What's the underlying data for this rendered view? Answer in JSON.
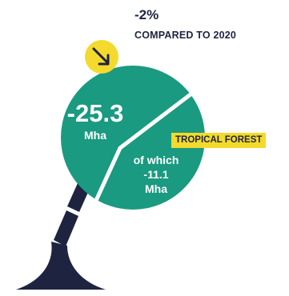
{
  "change": {
    "percent": "-2%",
    "label": "COMPARED TO 2020"
  },
  "total": {
    "value": "-25.3",
    "unit": "Mha"
  },
  "tag": {
    "label": "TROPICAL FOREST"
  },
  "subset": {
    "line1": "of which",
    "line2": "-11.1",
    "line3": "Mha"
  },
  "icons": {
    "trend": "arrow-down-right-icon"
  },
  "colors": {
    "circle": "#1a9a80",
    "badge": "#f4da2c",
    "navy": "#1e2440",
    "tag": "#f4da2c"
  }
}
